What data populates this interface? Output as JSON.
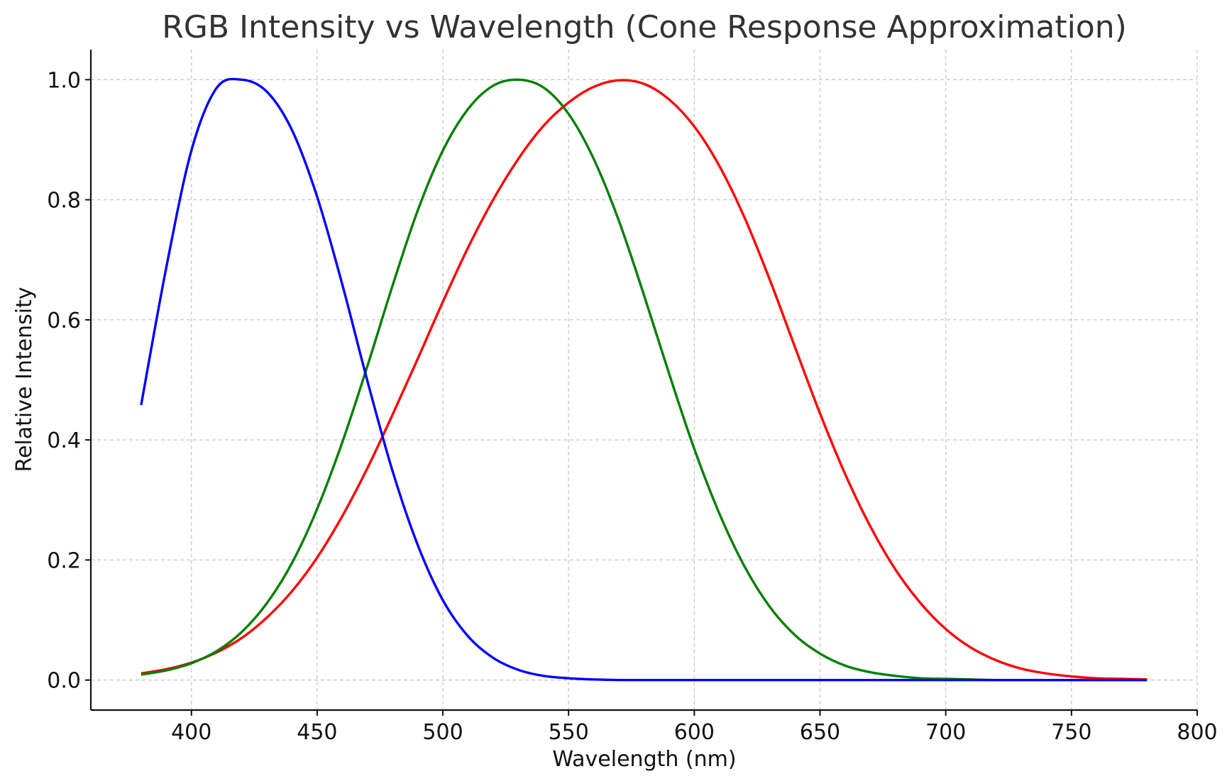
{
  "chart_data": {
    "type": "line",
    "title": "RGB Intensity vs Wavelength (Cone Response Approximation)",
    "xlabel": "Wavelength (nm)",
    "ylabel": "Relative Intensity",
    "xlim": [
      360,
      800
    ],
    "ylim": [
      -0.05,
      1.05
    ],
    "xticks": [
      400,
      450,
      500,
      550,
      600,
      650,
      700,
      750,
      800
    ],
    "yticks": [
      0.0,
      0.2,
      0.4,
      0.6,
      0.8,
      1.0
    ],
    "xtick_labels": [
      "400",
      "450",
      "500",
      "550",
      "600",
      "650",
      "700",
      "750",
      "800"
    ],
    "ytick_labels": [
      "0.0",
      "0.2",
      "0.4",
      "0.6",
      "0.8",
      "1.0"
    ],
    "grid": true,
    "legend": false,
    "x": [
      380,
      390,
      400,
      410,
      420,
      430,
      440,
      450,
      460,
      470,
      480,
      490,
      500,
      510,
      520,
      530,
      540,
      550,
      560,
      570,
      580,
      590,
      600,
      610,
      620,
      630,
      640,
      650,
      660,
      670,
      680,
      690,
      700,
      710,
      720,
      730,
      740,
      750,
      760,
      770,
      780
    ],
    "series": [
      {
        "color": "#ff0000",
        "values": [
          0.011,
          0.018,
          0.029,
          0.046,
          0.07,
          0.104,
          0.148,
          0.204,
          0.273,
          0.353,
          0.442,
          0.535,
          0.63,
          0.72,
          0.8,
          0.868,
          0.923,
          0.962,
          0.988,
          0.999,
          0.993,
          0.967,
          0.922,
          0.856,
          0.77,
          0.667,
          0.555,
          0.444,
          0.343,
          0.256,
          0.184,
          0.128,
          0.085,
          0.054,
          0.033,
          0.019,
          0.011,
          0.006,
          0.003,
          0.002,
          0.001
        ]
      },
      {
        "color": "#008000",
        "values": [
          0.009,
          0.016,
          0.028,
          0.048,
          0.08,
          0.128,
          0.195,
          0.285,
          0.396,
          0.523,
          0.657,
          0.782,
          0.882,
          0.951,
          0.99,
          1.0,
          0.987,
          0.943,
          0.868,
          0.765,
          0.641,
          0.51,
          0.385,
          0.277,
          0.189,
          0.122,
          0.075,
          0.044,
          0.024,
          0.013,
          0.007,
          0.003,
          0.002,
          0.001,
          0.0,
          0.0,
          0.0,
          0.0,
          0.0,
          0.0,
          0.0
        ]
      },
      {
        "color": "#0000ff",
        "values": [
          0.458,
          0.687,
          0.882,
          0.986,
          1.0,
          0.98,
          0.916,
          0.805,
          0.659,
          0.498,
          0.348,
          0.225,
          0.133,
          0.073,
          0.037,
          0.017,
          0.007,
          0.003,
          0.001,
          0.0,
          0.0,
          0.0,
          0.0,
          0.0,
          0.0,
          0.0,
          0.0,
          0.0,
          0.0,
          0.0,
          0.0,
          0.0,
          0.0,
          0.0,
          0.0,
          0.0,
          0.0,
          0.0,
          0.0,
          0.0,
          0.0
        ]
      }
    ]
  }
}
